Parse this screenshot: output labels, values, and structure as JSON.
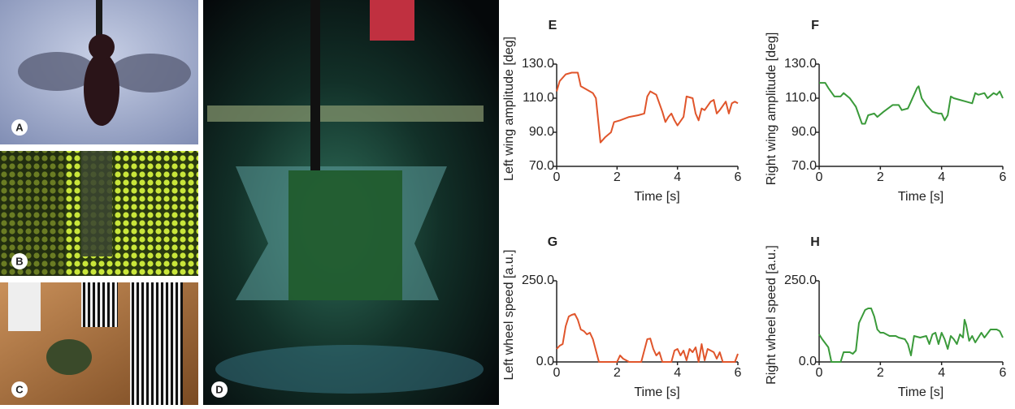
{
  "photos": [
    {
      "label": "A"
    },
    {
      "label": "B"
    },
    {
      "label": "C"
    },
    {
      "label": "D"
    }
  ],
  "chart_data": [
    {
      "type": "line",
      "title": "E",
      "ylabel": "Left wing amplitude [deg]",
      "xlabel": "Time [s]",
      "color": "#e0552b",
      "xlim": [
        0,
        6
      ],
      "xticks": [
        0,
        2,
        4,
        6
      ],
      "ylim": [
        70,
        130
      ],
      "yticks": [
        {
          "value": 70,
          "label": "70.0"
        },
        {
          "value": 90,
          "label": "90.0"
        },
        {
          "value": 110,
          "label": "110.0"
        },
        {
          "value": 130,
          "label": "130.0"
        }
      ],
      "x": [
        0,
        0.1,
        0.3,
        0.5,
        0.7,
        0.8,
        1.0,
        1.2,
        1.3,
        1.45,
        1.6,
        1.8,
        1.9,
        2.1,
        2.4,
        2.7,
        2.9,
        3.0,
        3.1,
        3.3,
        3.5,
        3.6,
        3.7,
        3.8,
        3.9,
        4.0,
        4.2,
        4.3,
        4.5,
        4.6,
        4.7,
        4.8,
        4.9,
        5.1,
        5.2,
        5.3,
        5.4,
        5.6,
        5.7,
        5.8,
        5.9,
        6.0
      ],
      "values": [
        114,
        120,
        124,
        125,
        125,
        117,
        115,
        113,
        110,
        84,
        87,
        90,
        96,
        97,
        99,
        100,
        101,
        111,
        114,
        112,
        102,
        96,
        99,
        101,
        97,
        94,
        99,
        111,
        110,
        101,
        97,
        104,
        103,
        108,
        109,
        101,
        103,
        108,
        101,
        107,
        108,
        107
      ]
    },
    {
      "type": "line",
      "title": "F",
      "ylabel": "Right wing amplitude [deg]",
      "xlabel": "Time [s]",
      "color": "#3a9a3a",
      "xlim": [
        0,
        6
      ],
      "xticks": [
        0,
        2,
        4,
        6
      ],
      "ylim": [
        70,
        130
      ],
      "yticks": [
        {
          "value": 70,
          "label": "70.0"
        },
        {
          "value": 90,
          "label": "90.0"
        },
        {
          "value": 110,
          "label": "110.0"
        },
        {
          "value": 130,
          "label": "130.0"
        }
      ],
      "x": [
        0,
        0.2,
        0.3,
        0.5,
        0.7,
        0.8,
        1.0,
        1.2,
        1.4,
        1.5,
        1.6,
        1.8,
        1.9,
        2.1,
        2.4,
        2.6,
        2.7,
        2.9,
        3.0,
        3.2,
        3.25,
        3.35,
        3.5,
        3.7,
        3.9,
        4.0,
        4.1,
        4.2,
        4.3,
        4.4,
        4.6,
        4.8,
        5.0,
        5.1,
        5.2,
        5.4,
        5.5,
        5.7,
        5.8,
        5.9,
        6.0
      ],
      "values": [
        119,
        119,
        116,
        111,
        111,
        113,
        110,
        105,
        95,
        95,
        100,
        101,
        99,
        102,
        106,
        106,
        103,
        104,
        108,
        116,
        117,
        110,
        106,
        102,
        101,
        101,
        97,
        100,
        111,
        110,
        109,
        108,
        107,
        113,
        112,
        113,
        110,
        113,
        112,
        114,
        110
      ]
    },
    {
      "type": "line",
      "title": "G",
      "ylabel": "Left wheel speed [a.u.]",
      "xlabel": "Time [s]",
      "color": "#e0552b",
      "xlim": [
        0,
        6
      ],
      "xticks": [
        0,
        2,
        4,
        6
      ],
      "ylim": [
        0,
        250
      ],
      "yticks": [
        {
          "value": 0,
          "label": "0.0"
        },
        {
          "value": 250,
          "label": "250.0"
        }
      ],
      "x": [
        0,
        0.1,
        0.2,
        0.3,
        0.4,
        0.5,
        0.6,
        0.7,
        0.8,
        0.9,
        1.0,
        1.1,
        1.2,
        1.4,
        1.6,
        2.0,
        2.1,
        2.2,
        2.4,
        2.8,
        3.0,
        3.1,
        3.2,
        3.3,
        3.4,
        3.5,
        3.8,
        3.9,
        4.0,
        4.1,
        4.2,
        4.3,
        4.4,
        4.5,
        4.6,
        4.7,
        4.8,
        4.9,
        5.0,
        5.2,
        5.3,
        5.4,
        5.5,
        5.9,
        6.0
      ],
      "values": [
        40,
        50,
        55,
        110,
        140,
        145,
        148,
        130,
        100,
        95,
        85,
        90,
        70,
        0,
        0,
        0,
        20,
        10,
        0,
        0,
        70,
        72,
        40,
        20,
        30,
        0,
        0,
        35,
        40,
        20,
        35,
        5,
        40,
        30,
        45,
        0,
        55,
        5,
        40,
        30,
        10,
        30,
        0,
        0,
        25
      ]
    },
    {
      "type": "line",
      "title": "H",
      "ylabel": "Right wheel speed [a.u.]",
      "xlabel": "Time [s]",
      "color": "#3a9a3a",
      "xlim": [
        0,
        6
      ],
      "xticks": [
        0,
        2,
        4,
        6
      ],
      "ylim": [
        0,
        250
      ],
      "yticks": [
        {
          "value": 0,
          "label": "0.0"
        },
        {
          "value": 250,
          "label": "250.0"
        }
      ],
      "x": [
        0,
        0.1,
        0.3,
        0.4,
        0.7,
        0.8,
        1.0,
        1.1,
        1.2,
        1.3,
        1.5,
        1.6,
        1.7,
        1.8,
        1.9,
        2.0,
        2.1,
        2.3,
        2.5,
        2.6,
        2.8,
        2.9,
        3.0,
        3.1,
        3.3,
        3.5,
        3.6,
        3.7,
        3.8,
        3.9,
        4.0,
        4.1,
        4.2,
        4.3,
        4.4,
        4.5,
        4.6,
        4.7,
        4.75,
        4.8,
        4.9,
        5.0,
        5.1,
        5.3,
        5.4,
        5.6,
        5.8,
        5.9,
        6.0
      ],
      "values": [
        85,
        70,
        45,
        0,
        0,
        30,
        30,
        25,
        35,
        120,
        160,
        165,
        165,
        140,
        100,
        90,
        90,
        80,
        80,
        75,
        70,
        55,
        20,
        80,
        75,
        80,
        55,
        85,
        90,
        55,
        90,
        70,
        40,
        80,
        70,
        55,
        85,
        75,
        130,
        115,
        65,
        80,
        60,
        90,
        75,
        100,
        100,
        95,
        75
      ]
    }
  ]
}
